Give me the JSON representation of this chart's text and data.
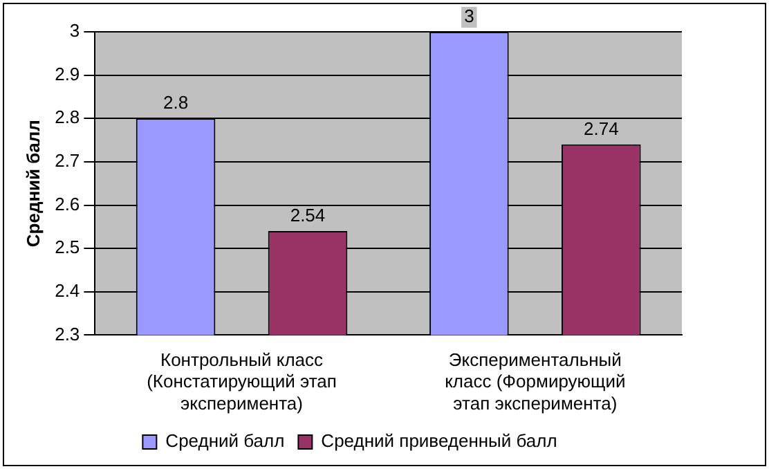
{
  "chart_data": {
    "type": "bar",
    "ylabel": "Средний балл",
    "categories": [
      "Контрольный класс\n(Констатирующий этап\nэксперимента)",
      "Экспериментальный\nкласс (Формирующий\nэтап эксперимента)"
    ],
    "series": [
      {
        "name": "Средний балл",
        "color": "#9999ff",
        "values": [
          2.8,
          3
        ]
      },
      {
        "name": "Средний приведенный балл",
        "color": "#993366",
        "values": [
          2.54,
          2.74
        ]
      }
    ],
    "ylim": [
      2.3,
      3
    ],
    "yticks": [
      2.3,
      2.4,
      2.5,
      2.6,
      2.7,
      2.8,
      2.9,
      3
    ],
    "grid": "y",
    "legend": "bottom",
    "data_labels": true
  }
}
